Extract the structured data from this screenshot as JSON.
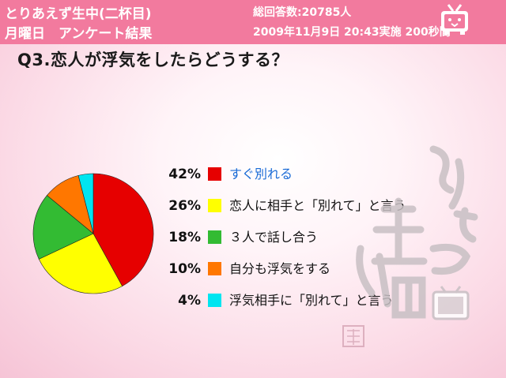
{
  "header": {
    "title": "とりあえず生中(二杯目)",
    "subtitle": "月曜日　アンケート結果",
    "total": "総回答数:20785人",
    "datetime": "2009年11月9日 20:43実施 200秒間"
  },
  "question": "Q3.恋人が浮気をしたらどうする？",
  "chart_data": {
    "type": "pie",
    "categories": [
      "すぐ別れる",
      "恋人に相手と「別れて」と言う",
      "３人で話し合う",
      "自分も浮気をする",
      "浮気相手に「別れて」と言う"
    ],
    "values": [
      42,
      26,
      18,
      10,
      4
    ],
    "value_labels": [
      "42%",
      "26%",
      "18%",
      "10%",
      "4%"
    ],
    "colors": [
      "#e60000",
      "#ffff00",
      "#33bb33",
      "#ff7700",
      "#00e5f0"
    ],
    "label_colors": [
      "#1a6bd6",
      "#111111",
      "#111111",
      "#111111",
      "#111111"
    ],
    "start_angle_deg": 0,
    "direction": "clockwise",
    "legend_placement": "right"
  },
  "colors": {
    "header_bg": "#f27a9e",
    "header_text": "#ffffff"
  },
  "icons": {
    "tv_logo": "niconico-tv-icon",
    "watermark": "toriaezu-namachu-stamp"
  }
}
